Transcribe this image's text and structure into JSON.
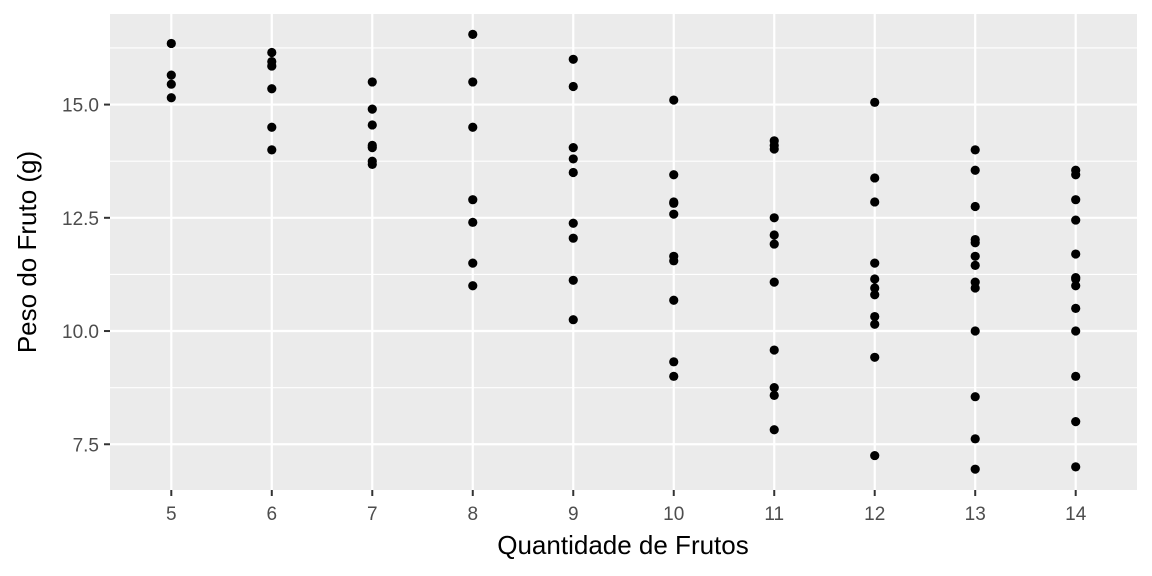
{
  "chart_data": {
    "type": "scatter",
    "xlabel": "Quantidade de Frutos",
    "ylabel": "Peso do Fruto (g)",
    "xlim": [
      4.39,
      14.61
    ],
    "ylim": [
      6.49,
      17.0
    ],
    "x_ticks": [
      5,
      6,
      7,
      8,
      9,
      10,
      11,
      12,
      13,
      14
    ],
    "x_tick_labels": [
      "5",
      "6",
      "7",
      "8",
      "9",
      "10",
      "11",
      "12",
      "13",
      "14"
    ],
    "y_ticks": [
      7.5,
      10.0,
      12.5,
      15.0
    ],
    "y_tick_labels": [
      "7.5",
      "10.0",
      "12.5",
      "15.0"
    ],
    "grid": true,
    "point_color": "#000000",
    "panel_color": "#ebebeb",
    "grid_color": "#ffffff",
    "points": [
      [
        5,
        16.35
      ],
      [
        5,
        15.65
      ],
      [
        5,
        15.45
      ],
      [
        5,
        15.15
      ],
      [
        6,
        16.15
      ],
      [
        6,
        15.95
      ],
      [
        6,
        15.85
      ],
      [
        6,
        15.35
      ],
      [
        6,
        14.5
      ],
      [
        6,
        14.0
      ],
      [
        7,
        15.5
      ],
      [
        7,
        14.9
      ],
      [
        7,
        14.55
      ],
      [
        7,
        14.1
      ],
      [
        7,
        14.05
      ],
      [
        7,
        13.75
      ],
      [
        7,
        13.68
      ],
      [
        8,
        16.55
      ],
      [
        8,
        15.5
      ],
      [
        8,
        14.5
      ],
      [
        8,
        12.9
      ],
      [
        8,
        12.4
      ],
      [
        8,
        11.5
      ],
      [
        8,
        11.0
      ],
      [
        9,
        16.0
      ],
      [
        9,
        15.4
      ],
      [
        9,
        14.05
      ],
      [
        9,
        13.8
      ],
      [
        9,
        13.5
      ],
      [
        9,
        12.38
      ],
      [
        9,
        12.05
      ],
      [
        9,
        11.12
      ],
      [
        9,
        10.25
      ],
      [
        10,
        15.1
      ],
      [
        10,
        13.45
      ],
      [
        10,
        12.85
      ],
      [
        10,
        12.82
      ],
      [
        10,
        12.58
      ],
      [
        10,
        11.65
      ],
      [
        10,
        11.55
      ],
      [
        10,
        10.68
      ],
      [
        10,
        9.32
      ],
      [
        10,
        9.0
      ],
      [
        11,
        14.2
      ],
      [
        11,
        14.1
      ],
      [
        11,
        14.02
      ],
      [
        11,
        12.5
      ],
      [
        11,
        12.12
      ],
      [
        11,
        11.92
      ],
      [
        11,
        11.08
      ],
      [
        11,
        9.58
      ],
      [
        11,
        8.75
      ],
      [
        11,
        8.58
      ],
      [
        11,
        7.82
      ],
      [
        12,
        15.05
      ],
      [
        12,
        13.38
      ],
      [
        12,
        12.85
      ],
      [
        12,
        11.5
      ],
      [
        12,
        11.15
      ],
      [
        12,
        10.95
      ],
      [
        12,
        10.8
      ],
      [
        12,
        10.32
      ],
      [
        12,
        10.15
      ],
      [
        12,
        9.42
      ],
      [
        12,
        7.25
      ],
      [
        13,
        14.0
      ],
      [
        13,
        13.55
      ],
      [
        13,
        12.75
      ],
      [
        13,
        12.02
      ],
      [
        13,
        11.95
      ],
      [
        13,
        11.65
      ],
      [
        13,
        11.45
      ],
      [
        13,
        11.08
      ],
      [
        13,
        10.95
      ],
      [
        13,
        10.0
      ],
      [
        13,
        8.55
      ],
      [
        13,
        7.62
      ],
      [
        13,
        6.95
      ],
      [
        14,
        13.55
      ],
      [
        14,
        13.45
      ],
      [
        14,
        12.9
      ],
      [
        14,
        12.45
      ],
      [
        14,
        11.7
      ],
      [
        14,
        11.18
      ],
      [
        14,
        11.15
      ],
      [
        14,
        11.0
      ],
      [
        14,
        10.5
      ],
      [
        14,
        10.0
      ],
      [
        14,
        9.0
      ],
      [
        14,
        8.0
      ],
      [
        14,
        7.0
      ]
    ]
  }
}
